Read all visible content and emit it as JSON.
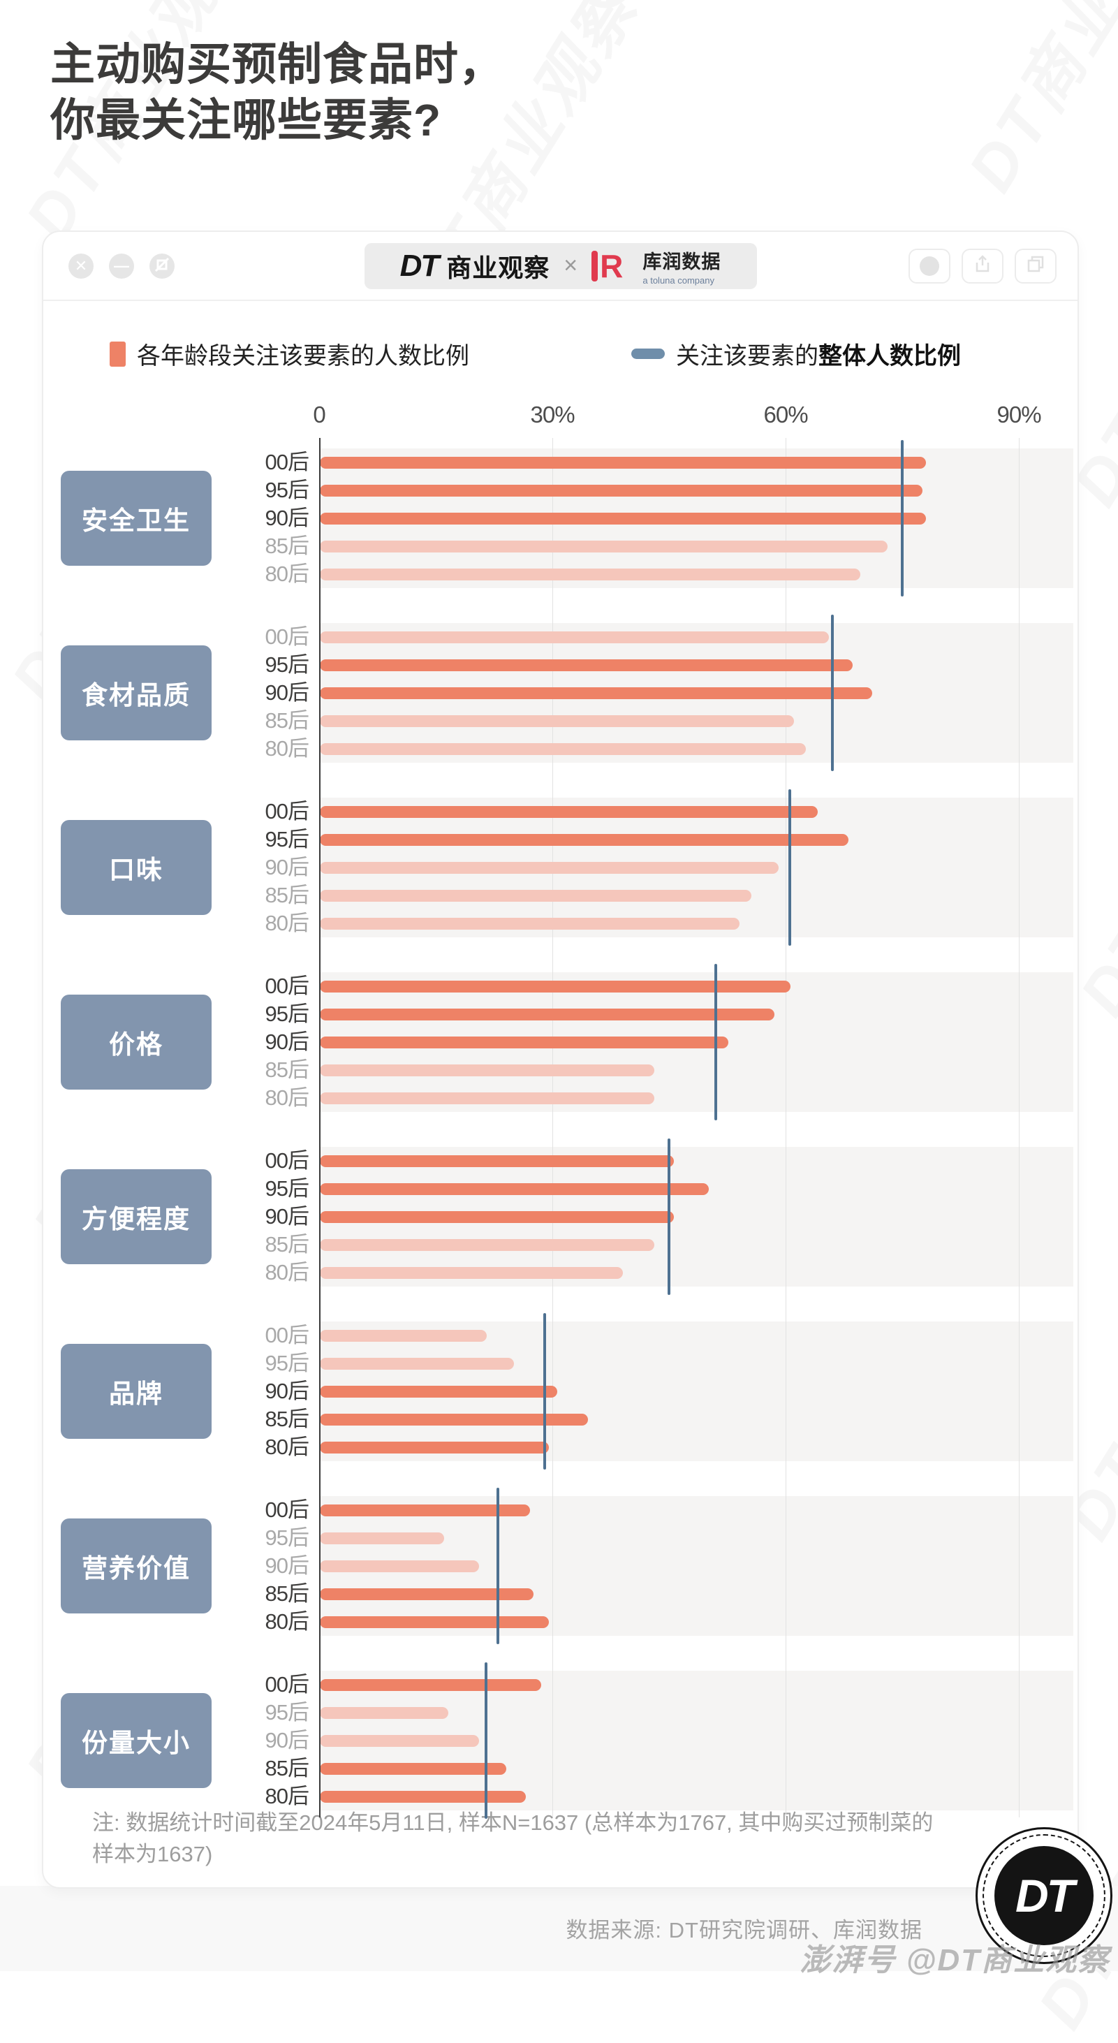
{
  "page": {
    "title_line1": "主动购买预制食品时，",
    "title_line2": "你最关注哪些要素?",
    "watermark_text": "DT商业观察",
    "bottom_watermark": "澎湃号 @DT商业观察"
  },
  "window": {
    "close_glyph": "✕",
    "minimize_glyph": "—",
    "brand_dt": "DT",
    "brand_name": "商业观察",
    "times_symbol": "×",
    "partner_letter": "R",
    "partner_name": "库润数据",
    "partner_sub": "a toluna company"
  },
  "legend": {
    "bars_label": "各年龄段关注该要素的人数比例",
    "line_label_prefix": "关注该要素的",
    "line_label_bold": "整体人数比例"
  },
  "chart_data": {
    "type": "bar",
    "unit": "percent",
    "orientation": "horizontal",
    "x_ticks": [
      "0",
      "30%",
      "60%",
      "90%"
    ],
    "x_tick_values": [
      0,
      30,
      60,
      90
    ],
    "xlim": [
      0,
      90
    ],
    "grid": true,
    "age_groups": [
      "00后",
      "95后",
      "90后",
      "85后",
      "80后"
    ],
    "emphasis_rule": "bar is highlighted solid when value >= group overall",
    "colors": {
      "bar_strong": "#ee8266",
      "bar_faded": "#f5c6bb",
      "overall_line": "#4e7191",
      "category_box": "#8295ae",
      "legend_line": "#6f8eaa",
      "label_dark": "#3f3e3d",
      "label_faded": "#a9a9a9"
    },
    "groups": [
      {
        "label": "安全卫生",
        "overall": 75,
        "values": [
          78,
          77.5,
          78,
          73,
          69.5
        ]
      },
      {
        "label": "食材品质",
        "overall": 66,
        "values": [
          65.5,
          68.5,
          71,
          61,
          62.5
        ]
      },
      {
        "label": "口味",
        "overall": 60.5,
        "values": [
          64,
          68,
          59,
          55.5,
          54
        ]
      },
      {
        "label": "价格",
        "overall": 51,
        "values": [
          60.5,
          58.5,
          52.5,
          43,
          43
        ]
      },
      {
        "label": "方便程度",
        "overall": 45,
        "values": [
          45.5,
          50,
          45.5,
          43,
          39
        ]
      },
      {
        "label": "品牌",
        "overall": 29,
        "values": [
          21.5,
          25,
          30.5,
          34.5,
          29.5
        ]
      },
      {
        "label": "营养价值",
        "overall": 23,
        "values": [
          27,
          16,
          20.5,
          27.5,
          29.5
        ]
      },
      {
        "label": "份量大小",
        "overall": 21.5,
        "values": [
          28.5,
          16.5,
          20.5,
          24,
          26.5
        ]
      }
    ]
  },
  "footnote": {
    "line1": "注: 数据统计时间截至2024年5月11日, 样本N=1637 (总样本为1767, 其中购买过预制菜的",
    "line2": "样本为1637)"
  },
  "source": {
    "text": "数据来源: DT研究院调研、库润数据"
  },
  "badge": {
    "text": "DT"
  }
}
